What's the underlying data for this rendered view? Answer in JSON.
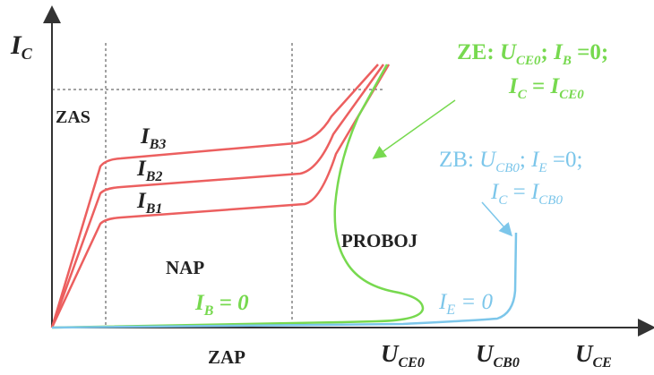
{
  "axes": {
    "y_main": "I",
    "y_sub": "C",
    "x_main": "U",
    "x_sub": "CE"
  },
  "regions": {
    "zas": "ZAS",
    "nap": "NAP",
    "zap": "ZAP",
    "proboj": "PROBOJ"
  },
  "curves": {
    "ib3": {
      "main": "I",
      "sub": "B3"
    },
    "ib2": {
      "main": "I",
      "sub": "B2"
    },
    "ib1": {
      "main": "I",
      "sub": "B1"
    },
    "ib0": {
      "main": "I",
      "sub": "B",
      "tail": " = 0"
    },
    "ie0": {
      "main": "I",
      "sub": "E",
      "tail": " = 0"
    }
  },
  "x_ticks": {
    "uce0": {
      "main": "U",
      "sub": "CE0"
    },
    "ucb0": {
      "main": "U",
      "sub": "CB0"
    }
  },
  "ze_note": {
    "prefix": "ZE: ",
    "u_main": "U",
    "u_sub": "CE0",
    "sep": ";  ",
    "i_main": "I",
    "i_sub": "B",
    "i_tail": " =0;",
    "c_main": "I",
    "c_sub": "C",
    "c_mid": " = ",
    "c2_main": "I",
    "c2_sub": "CE0"
  },
  "zb_note": {
    "prefix": "ZB:  ",
    "u_main": "U",
    "u_sub": "CB0",
    "sep": ";  ",
    "i_main": "I",
    "i_sub": "E",
    "i_tail": " =0;",
    "c_main": "I",
    "c_sub": "C",
    "c_mid": " = ",
    "c2_main": "I",
    "c2_sub": "CB0"
  },
  "colors": {
    "red": "#ec5f5f",
    "green": "#77d94f",
    "blue": "#7cc6ea",
    "axis": "#333333"
  }
}
